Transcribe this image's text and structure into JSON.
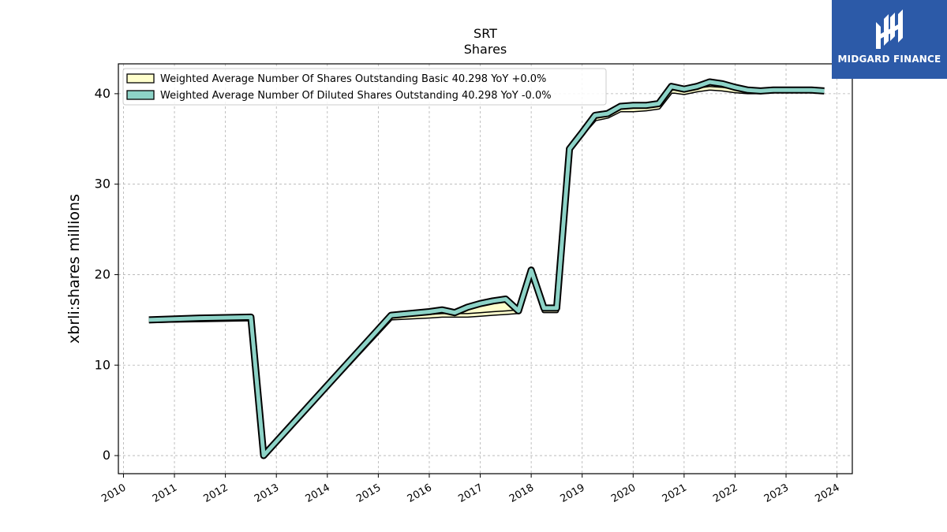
{
  "brand": {
    "name": "MIDGARD FINANCE",
    "color": "#2c5aa8",
    "icon": "midgard-logo-icon"
  },
  "chart_data": {
    "type": "line",
    "title": "SRT",
    "subtitle": "Shares",
    "xlabel": "",
    "ylabel": "xbrli:shares millions",
    "xlim": [
      2009.9,
      2024.3
    ],
    "ylim": [
      -2.0,
      43.3
    ],
    "yticks": [
      0,
      10,
      20,
      30,
      40
    ],
    "xticks": [
      "2010",
      "2011",
      "2012",
      "2013",
      "2014",
      "2015",
      "2016",
      "2017",
      "2018",
      "2019",
      "2020",
      "2021",
      "2022",
      "2023",
      "2024"
    ],
    "grid": true,
    "legend_position": "upper-left",
    "series": [
      {
        "name": "Weighted Average Number Of Shares Outstanding Basic  40.298 YoY +0.0%",
        "color": "#ffffcc",
        "x": [
          2010.5,
          2011.5,
          2012.5,
          2012.75,
          2015.25,
          2016.0,
          2016.25,
          2016.5,
          2016.75,
          2017.0,
          2017.25,
          2017.5,
          2017.75,
          2018.0,
          2018.25,
          2018.5,
          2018.75,
          2019.0,
          2019.25,
          2019.5,
          2019.75,
          2020.0,
          2020.25,
          2020.5,
          2020.75,
          2021.0,
          2021.25,
          2021.5,
          2021.75,
          2022.0,
          2022.25,
          2022.5,
          2022.75,
          2023.0,
          2023.25,
          2023.5,
          2023.75
        ],
        "values": [
          14.9,
          15.0,
          15.1,
          0.0,
          15.2,
          15.4,
          15.5,
          15.5,
          15.5,
          15.6,
          15.7,
          15.8,
          15.9,
          20.3,
          16.0,
          16.0,
          33.8,
          35.6,
          37.2,
          37.5,
          38.2,
          38.2,
          38.3,
          38.5,
          40.3,
          40.1,
          40.4,
          40.6,
          40.5,
          40.3,
          40.2,
          40.2,
          40.3,
          40.3,
          40.3,
          40.3,
          40.3
        ]
      },
      {
        "name": "Weighted Average Number Of Diluted Shares Outstanding  40.298 YoY -0.0%",
        "color": "#8dd3c7",
        "x": [
          2010.5,
          2011.5,
          2012.5,
          2012.75,
          2015.25,
          2016.0,
          2016.25,
          2016.5,
          2016.75,
          2017.0,
          2017.25,
          2017.5,
          2017.75,
          2018.0,
          2018.25,
          2018.5,
          2018.75,
          2019.0,
          2019.25,
          2019.5,
          2019.75,
          2020.0,
          2020.25,
          2020.5,
          2020.75,
          2021.0,
          2021.25,
          2021.5,
          2021.75,
          2022.0,
          2022.25,
          2022.5,
          2022.75,
          2023.0,
          2023.25,
          2023.5,
          2023.75
        ],
        "values": [
          15.0,
          15.2,
          15.3,
          0.0,
          15.5,
          15.9,
          16.1,
          15.8,
          16.4,
          16.8,
          17.1,
          17.3,
          16.0,
          20.5,
          16.3,
          16.3,
          33.9,
          35.7,
          37.6,
          37.8,
          38.6,
          38.7,
          38.7,
          38.9,
          40.8,
          40.5,
          40.8,
          41.3,
          41.1,
          40.7,
          40.4,
          40.3,
          40.4,
          40.4,
          40.4,
          40.4,
          40.3
        ]
      }
    ]
  }
}
